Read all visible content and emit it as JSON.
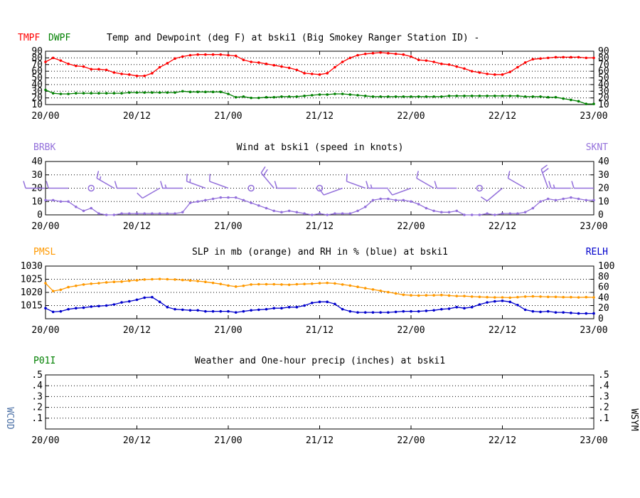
{
  "colors": {
    "temp": "#ff0000",
    "dewpoint": "#008000",
    "wind": "#9370db",
    "pressure": "#ff9900",
    "rh": "#0000cc",
    "wcod": "#4a6fa5",
    "grid": "#000000"
  },
  "chart_data": [
    {
      "type": "line",
      "title": "Temp and Dewpoint (deg F) at bski1 (Big Smokey Ranger Station ID) -",
      "left_labels": [
        "TMPF",
        "DWPF"
      ],
      "right_label": "",
      "ylim": [
        10,
        90
      ],
      "yticks": [
        10,
        20,
        30,
        40,
        50,
        60,
        70,
        80,
        90
      ],
      "xlim": [
        0,
        72
      ],
      "xticks": [
        "20/00",
        "20/12",
        "21/00",
        "21/12",
        "22/00",
        "22/12",
        "23/00"
      ],
      "series": [
        {
          "name": "TMPF",
          "color_key": "temp",
          "x": [
            0,
            1,
            2,
            3,
            4,
            5,
            6,
            7,
            8,
            9,
            10,
            11,
            12,
            13,
            14,
            15,
            16,
            17,
            18,
            19,
            20,
            21,
            22,
            23,
            24,
            25,
            26,
            27,
            28,
            29,
            30,
            31,
            32,
            33,
            34,
            35,
            36,
            37,
            38,
            39,
            40,
            41,
            42,
            43,
            44,
            45,
            46,
            47,
            48,
            49,
            50,
            51,
            52,
            53,
            54,
            55,
            56,
            57,
            58,
            59,
            60,
            61,
            62,
            63,
            64,
            65,
            66,
            67,
            68,
            69,
            70,
            71,
            72
          ],
          "y": [
            74,
            80,
            76,
            71,
            68,
            67,
            63,
            63,
            62,
            58,
            56,
            55,
            53,
            53,
            57,
            66,
            72,
            79,
            82,
            84,
            85,
            85,
            85,
            85,
            84,
            83,
            77,
            74,
            73,
            71,
            69,
            67,
            65,
            62,
            57,
            56,
            55,
            57,
            66,
            74,
            80,
            84,
            86,
            87,
            88,
            87,
            86,
            85,
            82,
            77,
            76,
            74,
            71,
            70,
            67,
            64,
            60,
            58,
            56,
            55,
            55,
            59,
            66,
            73,
            78,
            79,
            80,
            81,
            81,
            81,
            81,
            80,
            80
          ]
        },
        {
          "name": "DWPF",
          "color_key": "dewpoint",
          "x": [
            0,
            1,
            2,
            3,
            4,
            5,
            6,
            7,
            8,
            9,
            10,
            11,
            12,
            13,
            14,
            15,
            16,
            17,
            18,
            19,
            20,
            21,
            22,
            23,
            24,
            25,
            26,
            27,
            28,
            29,
            30,
            31,
            32,
            33,
            34,
            35,
            36,
            37,
            38,
            39,
            40,
            41,
            42,
            43,
            44,
            45,
            46,
            47,
            48,
            49,
            50,
            51,
            52,
            53,
            54,
            55,
            56,
            57,
            58,
            59,
            60,
            61,
            62,
            63,
            64,
            65,
            66,
            67,
            68,
            69,
            70,
            71,
            72
          ],
          "y": [
            32,
            27,
            26,
            26,
            27,
            27,
            27,
            27,
            27,
            27,
            27,
            28,
            28,
            28,
            28,
            28,
            28,
            28,
            30,
            29,
            29,
            29,
            29,
            29,
            26,
            21,
            22,
            20,
            20,
            21,
            21,
            22,
            22,
            22,
            23,
            24,
            25,
            25,
            26,
            26,
            25,
            24,
            23,
            22,
            22,
            22,
            22,
            22,
            22,
            22,
            22,
            22,
            22,
            23,
            23,
            23,
            23,
            23,
            23,
            23,
            23,
            23,
            23,
            22,
            22,
            22,
            21,
            21,
            19,
            17,
            15,
            11,
            11
          ]
        }
      ]
    },
    {
      "type": "line",
      "title": "Wind at  bski1 (speed in knots)",
      "left_labels": [
        "BRBK"
      ],
      "right_label": "SKNT",
      "ylim": [
        0,
        40
      ],
      "yticks": [
        0,
        10,
        20,
        30,
        40
      ],
      "xlim": [
        0,
        72
      ],
      "xticks": [
        "20/00",
        "20/12",
        "21/00",
        "21/12",
        "22/00",
        "22/12",
        "23/00"
      ],
      "series": [
        {
          "name": "SKNT",
          "color_key": "wind",
          "x": [
            0,
            1,
            2,
            3,
            4,
            5,
            6,
            7,
            8,
            9,
            10,
            11,
            12,
            13,
            14,
            15,
            16,
            17,
            18,
            19,
            20,
            21,
            22,
            23,
            24,
            25,
            26,
            27,
            28,
            29,
            30,
            31,
            32,
            33,
            34,
            35,
            36,
            37,
            38,
            39,
            40,
            41,
            42,
            43,
            44,
            45,
            46,
            47,
            48,
            49,
            50,
            51,
            52,
            53,
            54,
            55,
            56,
            57,
            58,
            59,
            60,
            61,
            62,
            63,
            64,
            65,
            66,
            67,
            68,
            69,
            70,
            71,
            72
          ],
          "y": [
            11,
            11,
            10,
            10,
            6,
            3,
            5,
            1,
            0,
            0,
            1,
            1,
            1,
            1,
            1,
            1,
            1,
            1,
            2,
            9,
            10,
            11,
            12,
            13,
            13,
            13,
            11,
            9,
            7,
            5,
            3,
            2,
            3,
            2,
            1,
            0,
            1,
            0,
            1,
            1,
            1,
            3,
            6,
            11,
            12,
            12,
            11,
            11,
            10,
            8,
            5,
            3,
            2,
            2,
            3,
            0,
            0,
            0,
            1,
            0,
            1,
            1,
            1,
            2,
            5,
            10,
            12,
            11,
            12,
            13,
            12,
            11,
            11
          ]
        },
        {
          "name": "BRBK",
          "color_key": "wind",
          "marker": "barbs",
          "y_plot": 20,
          "x": [
            0,
            3,
            6,
            9,
            12,
            15,
            18,
            21,
            24,
            27,
            30,
            33,
            36,
            39,
            42,
            45,
            48,
            51,
            54,
            57,
            60,
            63,
            66,
            69,
            72
          ],
          "speed": [
            10,
            10,
            0,
            15,
            10,
            10,
            15,
            15,
            10,
            0,
            20,
            10,
            0,
            10,
            10,
            15,
            10,
            10,
            10,
            0,
            10,
            10,
            20,
            15,
            10
          ],
          "direction": [
            270,
            270,
            0,
            300,
            270,
            240,
            270,
            290,
            290,
            0,
            320,
            270,
            0,
            250,
            290,
            270,
            250,
            300,
            270,
            0,
            230,
            300,
            340,
            270,
            270
          ]
        }
      ]
    },
    {
      "type": "line",
      "title": "SLP in mb (orange) and RH in % (blue) at  bski1",
      "left_labels": [
        "PMSL"
      ],
      "right_label": "RELH",
      "ylim": [
        1010,
        1030
      ],
      "yticks": [
        1015,
        1020,
        1025,
        1030
      ],
      "y2lim": [
        0,
        100
      ],
      "y2ticks": [
        0,
        20,
        40,
        60,
        80,
        100
      ],
      "xlim": [
        0,
        72
      ],
      "xticks": [
        "20/00",
        "20/12",
        "21/00",
        "21/12",
        "22/00",
        "22/12",
        "23/00"
      ],
      "series": [
        {
          "name": "PMSL",
          "color_key": "pressure",
          "axis": "left",
          "x": [
            0,
            1,
            2,
            3,
            4,
            5,
            6,
            7,
            8,
            9,
            10,
            11,
            12,
            13,
            14,
            15,
            16,
            17,
            18,
            19,
            20,
            21,
            22,
            23,
            24,
            25,
            26,
            27,
            28,
            29,
            30,
            31,
            32,
            33,
            34,
            35,
            36,
            37,
            38,
            39,
            40,
            41,
            42,
            43,
            44,
            45,
            46,
            47,
            48,
            49,
            50,
            51,
            52,
            53,
            54,
            55,
            56,
            57,
            58,
            59,
            60,
            61,
            62,
            63,
            64,
            65,
            66,
            67,
            68,
            69,
            70,
            71,
            72
          ],
          "y": [
            1023.5,
            1020.5,
            1021.0,
            1022.0,
            1022.5,
            1023.0,
            1023.3,
            1023.5,
            1023.8,
            1024.0,
            1024.1,
            1024.4,
            1024.6,
            1024.9,
            1025.0,
            1025.1,
            1025.0,
            1024.9,
            1024.7,
            1024.5,
            1024.3,
            1024.0,
            1023.6,
            1023.2,
            1022.6,
            1022.2,
            1022.5,
            1023.0,
            1023.1,
            1023.1,
            1023.1,
            1023.0,
            1022.9,
            1023.1,
            1023.2,
            1023.3,
            1023.5,
            1023.6,
            1023.4,
            1023.0,
            1022.6,
            1022.1,
            1021.6,
            1021.1,
            1020.6,
            1020.1,
            1019.6,
            1019.1,
            1018.9,
            1018.8,
            1018.9,
            1018.9,
            1019.0,
            1018.8,
            1018.6,
            1018.6,
            1018.4,
            1018.3,
            1018.2,
            1018.1,
            1018.1,
            1018.0,
            1018.2,
            1018.4,
            1018.5,
            1018.4,
            1018.3,
            1018.3,
            1018.2,
            1018.2,
            1018.1,
            1018.2,
            1018.1
          ]
        },
        {
          "name": "RELH",
          "color_key": "rh",
          "axis": "right",
          "x": [
            0,
            1,
            2,
            3,
            4,
            5,
            6,
            7,
            8,
            9,
            10,
            11,
            12,
            13,
            14,
            15,
            16,
            17,
            18,
            19,
            20,
            21,
            22,
            23,
            24,
            25,
            26,
            27,
            28,
            29,
            30,
            31,
            32,
            33,
            34,
            35,
            36,
            37,
            38,
            39,
            40,
            41,
            42,
            43,
            44,
            45,
            46,
            47,
            48,
            49,
            50,
            51,
            52,
            53,
            54,
            55,
            56,
            57,
            58,
            59,
            60,
            61,
            62,
            63,
            64,
            65,
            66,
            67,
            68,
            69,
            70,
            71,
            72
          ],
          "y": [
            20,
            13,
            14,
            18,
            20,
            21,
            23,
            24,
            25,
            27,
            31,
            33,
            36,
            40,
            41,
            32,
            22,
            18,
            17,
            16,
            16,
            14,
            14,
            14,
            14,
            12,
            14,
            16,
            17,
            18,
            20,
            20,
            22,
            22,
            25,
            30,
            32,
            32,
            28,
            18,
            14,
            12,
            12,
            12,
            12,
            12,
            13,
            14,
            14,
            14,
            15,
            16,
            18,
            19,
            22,
            20,
            22,
            27,
            31,
            33,
            34,
            32,
            26,
            17,
            14,
            13,
            14,
            12,
            12,
            11,
            10,
            10,
            10
          ]
        }
      ]
    },
    {
      "type": "line",
      "title": "Weather and One-hour precip (inches) at  bski1",
      "left_labels": [
        "P01I"
      ],
      "right_label": "",
      "side_left": "WCOD",
      "side_right": "WSYM",
      "ylim": [
        0,
        0.5
      ],
      "yticks": [
        0.1,
        0.2,
        0.3,
        0.4,
        0.5
      ],
      "xlim": [
        0,
        72
      ],
      "xticks": [
        "20/00",
        "20/12",
        "21/00",
        "21/12",
        "22/00",
        "22/12",
        "23/00"
      ],
      "series": []
    }
  ]
}
